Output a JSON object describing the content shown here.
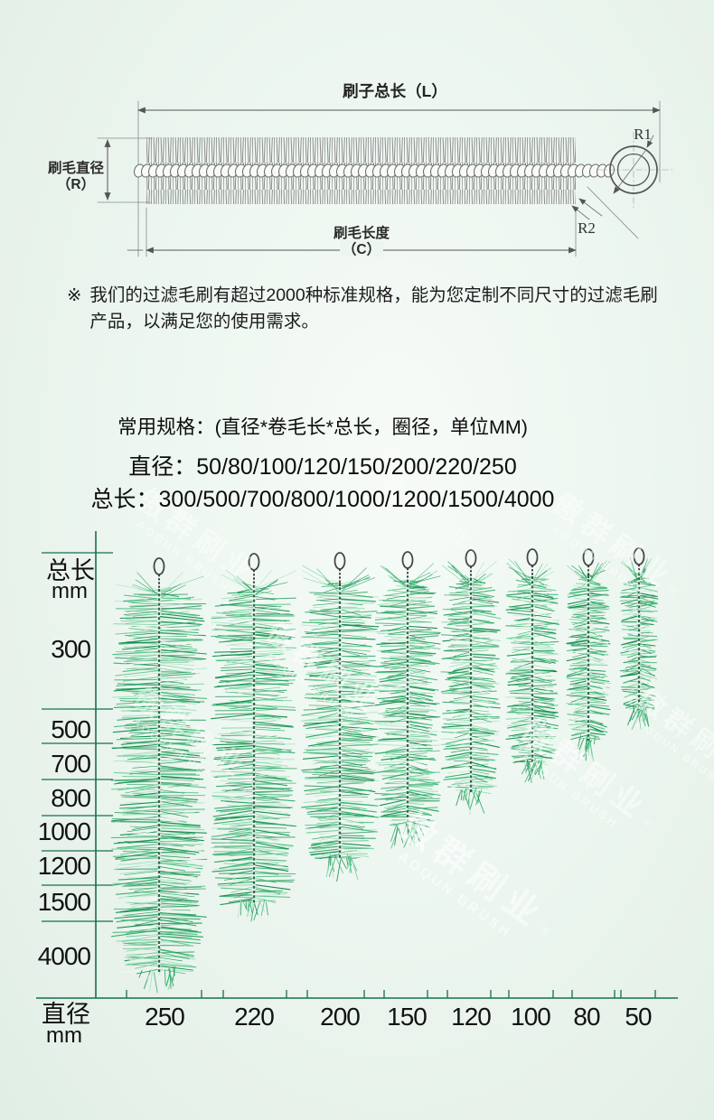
{
  "diagram": {
    "total_length_label": "刷子总长（L）",
    "diameter_label": "刷毛直径",
    "diameter_symbol": "（R）",
    "bristle_length_label": "刷毛长度",
    "bristle_length_symbol": "（C）",
    "r1": "R1",
    "r2": "R2"
  },
  "note": {
    "marker": "※",
    "line1": "我们的过滤毛刷有超过2000种标准规格，能为您定制不同尺寸的过滤毛刷",
    "line2": "产品，以满足您的使用需求。"
  },
  "specs": {
    "line1": "常用规格：(直径*卷毛长*总长，圈径，单位MM)",
    "line2": "直径：50/80/100/120/150/200/220/250",
    "line3": "总长：300/500/700/800/1000/1200/1500/4000"
  },
  "watermark": {
    "cjk": "傲群刷业",
    "latin": "AOQUN BRUSH",
    "reg": "®"
  },
  "colors": {
    "axis_green": "#15714a",
    "text_dark": "#141414",
    "diagram_line": "#5c5c5c",
    "bristle_palette": [
      "#0e8a4a",
      "#17934f",
      "#22a05c",
      "#2eae68",
      "#45bd7c",
      "#6fcf97",
      "#a8e2c2"
    ],
    "bristle_highlight": "#eef9f2",
    "stem": "#1d5c3d",
    "background_mint": "#e9f3ed"
  },
  "chart_data": {
    "type": "pictorial-size-chart",
    "title": "",
    "y_axis": {
      "title_line1": "总长",
      "title_line2": "mm",
      "ticks": [
        "300",
        "500",
        "700",
        "800",
        "1000",
        "1200",
        "1500",
        "4000"
      ]
    },
    "x_axis": {
      "title_line1": "直径",
      "title_line2": "mm",
      "ticks": [
        "250",
        "220",
        "200",
        "150",
        "120",
        "100",
        "80",
        "50"
      ]
    },
    "diameters_mm": [
      250,
      220,
      200,
      150,
      120,
      100,
      80,
      50
    ],
    "lengths_mm": [
      300,
      500,
      700,
      800,
      1000,
      1200,
      1500,
      4000
    ]
  }
}
